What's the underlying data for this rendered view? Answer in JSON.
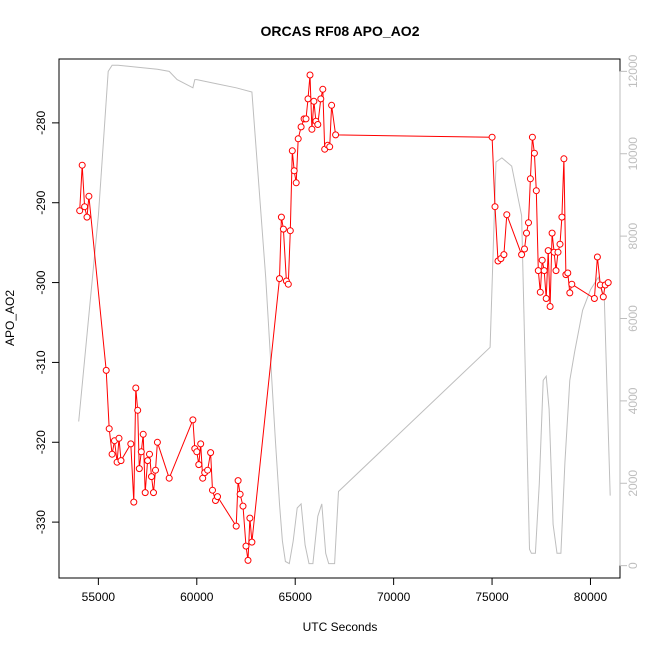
{
  "chart_data": {
    "type": "line",
    "title": "ORCAS RF08 APO_AO2",
    "xlabel": "UTC Seconds",
    "ylabel": "APO_AO2",
    "y2label": "",
    "xlim": [
      53000,
      81500
    ],
    "ylim": [
      -337,
      -272
    ],
    "y2lim": [
      -300,
      12300
    ],
    "x_ticks": [
      55000,
      60000,
      65000,
      70000,
      75000,
      80000
    ],
    "y_ticks": [
      -330,
      -320,
      -310,
      -300,
      -290,
      -280
    ],
    "y2_ticks": [
      0,
      2000,
      4000,
      6000,
      8000,
      10000,
      12000
    ],
    "grid": false,
    "colors": {
      "primary": "#ff0000",
      "secondary": "#bebebe",
      "axis": "#000000",
      "secondary_axis": "#bebebe"
    },
    "series": [
      {
        "axis": "left",
        "style": "line+points",
        "color": "#ff0000",
        "points": [
          [
            54050,
            -291
          ],
          [
            54180,
            -285.3
          ],
          [
            54300,
            -290.5
          ],
          [
            54420,
            -291.8
          ],
          [
            54520,
            -289.2
          ],
          [
            55400,
            -311
          ],
          [
            55550,
            -318.3
          ],
          [
            55700,
            -321.5
          ],
          [
            55820,
            -319.8
          ],
          [
            55950,
            -322.5
          ],
          [
            56050,
            -319.5
          ],
          [
            56150,
            -322.3
          ],
          [
            56650,
            -320.2
          ],
          [
            56800,
            -327.5
          ],
          [
            56900,
            -313.2
          ],
          [
            57000,
            -316
          ],
          [
            57080,
            -323.3
          ],
          [
            57180,
            -321.2
          ],
          [
            57280,
            -319
          ],
          [
            57380,
            -326.3
          ],
          [
            57500,
            -322.3
          ],
          [
            57600,
            -321.5
          ],
          [
            57700,
            -324.3
          ],
          [
            57800,
            -326.3
          ],
          [
            57900,
            -323.5
          ],
          [
            58000,
            -320
          ],
          [
            58600,
            -324.5
          ],
          [
            59800,
            -317.2
          ],
          [
            59900,
            -320.8
          ],
          [
            60000,
            -321.2
          ],
          [
            60100,
            -322.8
          ],
          [
            60200,
            -320.2
          ],
          [
            60300,
            -324.5
          ],
          [
            60400,
            -323.8
          ],
          [
            60550,
            -323.5
          ],
          [
            60700,
            -321.3
          ],
          [
            60800,
            -326
          ],
          [
            60950,
            -327.3
          ],
          [
            61050,
            -326.8
          ],
          [
            62000,
            -330.5
          ],
          [
            62100,
            -324.8
          ],
          [
            62200,
            -326.5
          ],
          [
            62350,
            -328
          ],
          [
            62500,
            -333
          ],
          [
            62600,
            -334.8
          ],
          [
            62700,
            -329.5
          ],
          [
            62800,
            -332.5
          ],
          [
            64200,
            -299.5
          ],
          [
            64300,
            -291.8
          ],
          [
            64400,
            -293.3
          ],
          [
            64550,
            -299.8
          ],
          [
            64650,
            -300.2
          ],
          [
            64750,
            -293.5
          ],
          [
            64850,
            -283.5
          ],
          [
            64950,
            -286
          ],
          [
            65050,
            -287.5
          ],
          [
            65150,
            -282
          ],
          [
            65300,
            -280.5
          ],
          [
            65450,
            -279.5
          ],
          [
            65550,
            -279.5
          ],
          [
            65650,
            -277
          ],
          [
            65750,
            -274
          ],
          [
            65850,
            -280.8
          ],
          [
            65950,
            -277.3
          ],
          [
            66050,
            -279.8
          ],
          [
            66150,
            -280.2
          ],
          [
            66300,
            -277
          ],
          [
            66400,
            -275.8
          ],
          [
            66500,
            -283.3
          ],
          [
            66650,
            -282.8
          ],
          [
            66750,
            -283
          ],
          [
            66850,
            -277.8
          ],
          [
            67050,
            -281.5
          ],
          [
            75000,
            -281.8
          ],
          [
            75150,
            -290.5
          ],
          [
            75300,
            -297.3
          ],
          [
            75450,
            -297
          ],
          [
            75600,
            -296.5
          ],
          [
            75750,
            -291.5
          ],
          [
            76500,
            -296.5
          ],
          [
            76650,
            -295.8
          ],
          [
            76750,
            -293.8
          ],
          [
            76850,
            -292.5
          ],
          [
            76950,
            -287
          ],
          [
            77050,
            -281.8
          ],
          [
            77150,
            -283.8
          ],
          [
            77250,
            -288.5
          ],
          [
            77350,
            -298.5
          ],
          [
            77450,
            -301.2
          ],
          [
            77550,
            -297.2
          ],
          [
            77650,
            -298.5
          ],
          [
            77750,
            -302
          ],
          [
            77850,
            -296
          ],
          [
            77950,
            -303
          ],
          [
            78050,
            -293.8
          ],
          [
            78150,
            -296.2
          ],
          [
            78250,
            -298.5
          ],
          [
            78350,
            -296.2
          ],
          [
            78450,
            -295.2
          ],
          [
            78550,
            -291.8
          ],
          [
            78650,
            -284.5
          ],
          [
            78750,
            -299
          ],
          [
            78850,
            -298.8
          ],
          [
            78950,
            -301.3
          ],
          [
            79050,
            -300.2
          ],
          [
            80200,
            -302
          ],
          [
            80350,
            -296.8
          ],
          [
            80500,
            -300.3
          ],
          [
            80650,
            -301.8
          ],
          [
            80750,
            -300.3
          ],
          [
            80900,
            -300
          ]
        ]
      },
      {
        "axis": "right",
        "style": "line",
        "color": "#bebebe",
        "points": [
          [
            54000,
            3500
          ],
          [
            55000,
            8500
          ],
          [
            55500,
            12000
          ],
          [
            55700,
            12150
          ],
          [
            56000,
            12150
          ],
          [
            57000,
            12100
          ],
          [
            58000,
            12050
          ],
          [
            58600,
            12000
          ],
          [
            59000,
            11800
          ],
          [
            59400,
            11700
          ],
          [
            59800,
            11600
          ],
          [
            59900,
            11800
          ],
          [
            60000,
            11800
          ],
          [
            61000,
            11700
          ],
          [
            62000,
            11600
          ],
          [
            62800,
            11500
          ],
          [
            63500,
            7000
          ],
          [
            64000,
            3000
          ],
          [
            64200,
            1500
          ],
          [
            64350,
            600
          ],
          [
            64500,
            100
          ],
          [
            64700,
            50
          ],
          [
            64900,
            600
          ],
          [
            65100,
            1400
          ],
          [
            65300,
            1500
          ],
          [
            65500,
            500
          ],
          [
            65700,
            50
          ],
          [
            65900,
            50
          ],
          [
            66150,
            1200
          ],
          [
            66350,
            1500
          ],
          [
            66550,
            300
          ],
          [
            66700,
            50
          ],
          [
            67000,
            50
          ],
          [
            67200,
            1800
          ],
          [
            74900,
            5300
          ],
          [
            75200,
            9800
          ],
          [
            75500,
            9900
          ],
          [
            76000,
            9700
          ],
          [
            76500,
            8500
          ],
          [
            76750,
            3500
          ],
          [
            76900,
            400
          ],
          [
            77000,
            300
          ],
          [
            77200,
            300
          ],
          [
            77400,
            2000
          ],
          [
            77600,
            4500
          ],
          [
            77750,
            4600
          ],
          [
            77900,
            3800
          ],
          [
            78100,
            1000
          ],
          [
            78300,
            300
          ],
          [
            78500,
            300
          ],
          [
            78700,
            2500
          ],
          [
            78950,
            4500
          ],
          [
            79200,
            5200
          ],
          [
            79600,
            6200
          ],
          [
            80000,
            6700
          ],
          [
            80400,
            7000
          ],
          [
            80700,
            6500
          ],
          [
            81000,
            1700
          ]
        ]
      }
    ]
  }
}
